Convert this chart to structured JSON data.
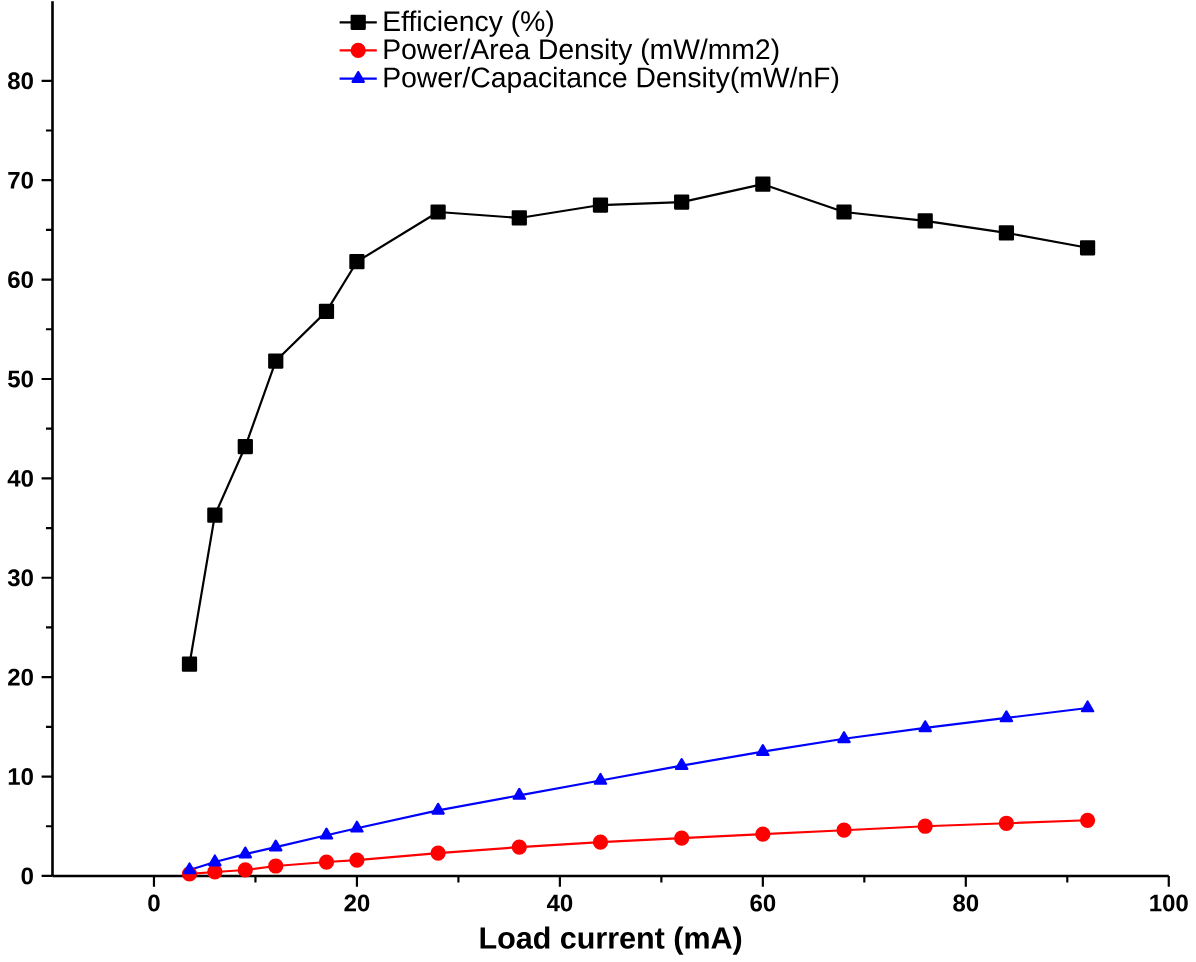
{
  "chart_data": {
    "type": "line",
    "xlabel": "Load current (mA)",
    "xlim": [
      -10,
      100
    ],
    "ylim": [
      0,
      88
    ],
    "xticks": [
      0,
      20,
      40,
      60,
      80,
      100
    ],
    "yticks": [
      0,
      10,
      20,
      30,
      40,
      50,
      60,
      70,
      80
    ],
    "x": [
      3.5,
      6,
      9,
      12,
      17,
      20,
      28,
      36,
      44,
      52,
      60,
      68,
      76,
      84,
      92
    ],
    "legend": "top",
    "grid": false,
    "line_style": "solid",
    "series": [
      {
        "name": "Efficiency (%)",
        "color": "#000000",
        "marker": "square",
        "values": [
          21.3,
          36.3,
          43.2,
          51.8,
          56.8,
          61.8,
          66.8,
          66.2,
          67.5,
          67.8,
          69.6,
          66.8,
          65.9,
          64.7,
          63.2
        ]
      },
      {
        "name": "Power/Area Density (mW/mm2)",
        "color": "#ff0000",
        "marker": "circle",
        "values": [
          0.2,
          0.4,
          0.6,
          1.0,
          1.4,
          1.6,
          2.3,
          2.9,
          3.4,
          3.8,
          4.2,
          4.6,
          5.0,
          5.3,
          5.6
        ]
      },
      {
        "name": "Power/Capacitance Density(mW/nF)",
        "color": "#0000ff",
        "marker": "triangle",
        "values": [
          0.6,
          1.4,
          2.2,
          2.9,
          4.1,
          4.8,
          6.6,
          8.1,
          9.6,
          11.1,
          12.5,
          13.8,
          14.9,
          15.9,
          16.9
        ]
      }
    ]
  }
}
